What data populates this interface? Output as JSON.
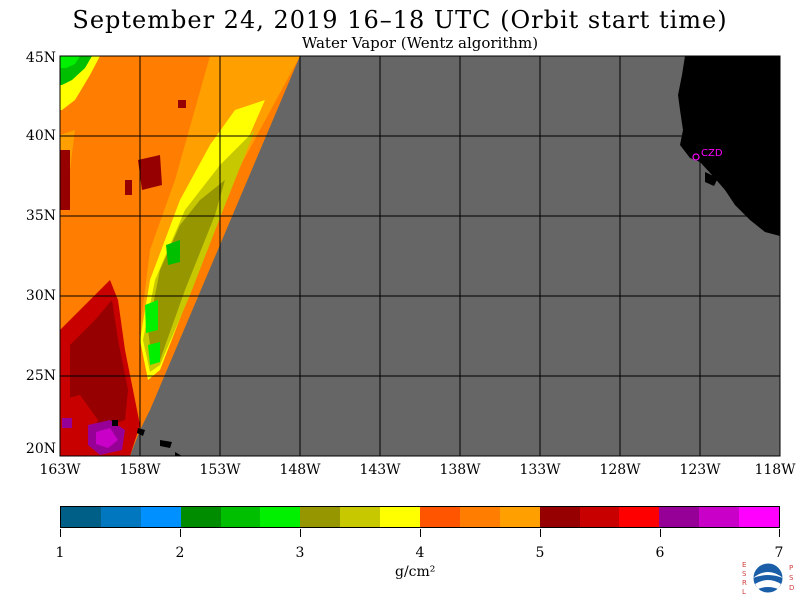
{
  "title": "September 24, 2019  16–18 UTC  (Orbit start time)",
  "subtitle": "Water Vapor (Wentz algorithm)",
  "map": {
    "lat_labels": [
      "45N",
      "40N",
      "35N",
      "30N",
      "25N",
      "20N"
    ],
    "lon_labels": [
      "163W",
      "158W",
      "153W",
      "148W",
      "143W",
      "138W",
      "133W",
      "128W",
      "123W",
      "118W"
    ],
    "lat_range": [
      20,
      45
    ],
    "lon_range": [
      -163,
      -118
    ],
    "station_label": "CZD",
    "no_data_color": "#666666",
    "land_color": "#000000",
    "station_color": "#ff00ff"
  },
  "colorbar": {
    "colors": [
      "#005f86",
      "#0077bf",
      "#0090ff",
      "#008c00",
      "#00be00",
      "#00f000",
      "#969600",
      "#c8c800",
      "#ffff00",
      "#ff5500",
      "#ff7d00",
      "#ffa000",
      "#960000",
      "#c80000",
      "#ff0000",
      "#960096",
      "#c800c8",
      "#ff00ff"
    ],
    "tick_labels": [
      "1",
      "2",
      "3",
      "4",
      "5",
      "6",
      "7"
    ],
    "units": "g/cm²"
  },
  "logo": {
    "name": "NOAA",
    "left_letters": [
      "E",
      "S",
      "R",
      "L"
    ],
    "right_letters": [
      "P",
      "S",
      "D"
    ]
  }
}
